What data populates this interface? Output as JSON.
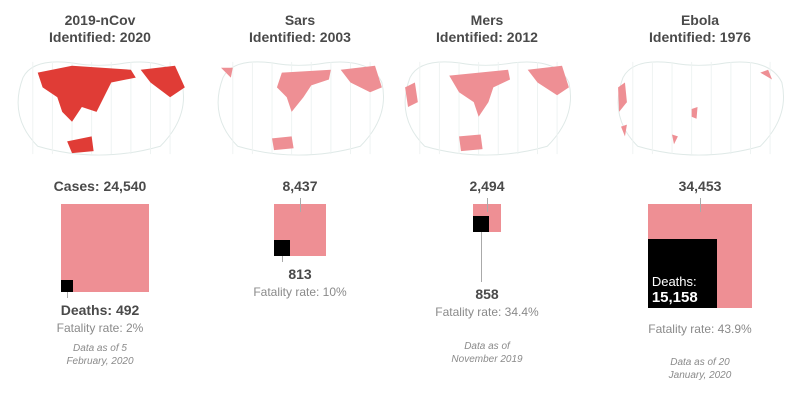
{
  "colors": {
    "case_fill": "#ee8f94",
    "case_fill_current": "#e03c36",
    "map_highlight_past": "#ee8f94",
    "death_fill": "#000000",
    "text": "#4a4a4a",
    "muted": "#8a8a8a"
  },
  "chart_data": {
    "type": "area",
    "panels": [
      {
        "title": "2019-nCov",
        "identified": "Identified: 2020",
        "cases_label": "Cases: 24,540",
        "cases": 24540,
        "deaths_label": "Deaths: 492",
        "deaths": 492,
        "fatality_rate": "Fatality rate: 2%",
        "note": [
          "Data as of 5",
          "February, 2020"
        ]
      },
      {
        "title": "Sars",
        "identified": "Identified: 2003",
        "cases_label": "8,437",
        "cases": 8437,
        "deaths_label": "813",
        "deaths": 813,
        "fatality_rate": "Fatality rate: 10%",
        "note": []
      },
      {
        "title": "Mers",
        "identified": "Identified: 2012",
        "cases_label": "2,494",
        "cases": 2494,
        "deaths_label": "858",
        "deaths": 858,
        "fatality_rate": "Fatality rate: 34.4%",
        "note": [
          "Data as of",
          "November 2019"
        ]
      },
      {
        "title": "Ebola",
        "identified": "Identified: 1976",
        "cases_label": "34,453",
        "cases": 34453,
        "deaths_label_prefix": "Deaths:",
        "deaths_label": "15,158",
        "deaths": 15158,
        "fatality_rate": "Fatality rate: 43.9%",
        "note": [
          "Data as of 20",
          "January, 2020"
        ]
      }
    ]
  }
}
